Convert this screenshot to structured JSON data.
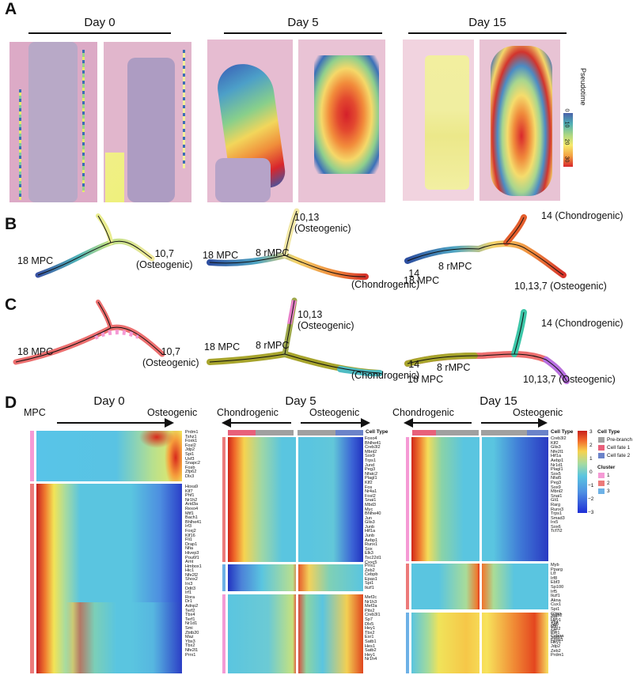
{
  "panels": {
    "A": {
      "letter": "A",
      "days": [
        "Day 0",
        "Day 5",
        "Day 15"
      ],
      "colorbar": {
        "title": "Pseudotime",
        "ticks": [
          "0",
          "10",
          "20",
          "30"
        ]
      }
    },
    "B": {
      "letter": "B",
      "day0": {
        "left": "18 MPC",
        "right": "10,7\n(Osteogenic)"
      },
      "day5": {
        "left": "18 MPC",
        "mid": "8 rMPC",
        "top": "10,13\n(Osteogenic)",
        "right": "14\n(Chondrogenic)"
      },
      "day15": {
        "top": "14 (Chondrogenic)",
        "mid": "8 rMPC",
        "left": "18 MPC",
        "right": "10,13,7 (Osteogenic)"
      }
    },
    "C": {
      "letter": "C",
      "day0": {
        "left": "18 MPC",
        "right": "10,7\n(Osteogenic)"
      },
      "day5": {
        "left": "18 MPC",
        "mid": "8 rMPC",
        "top": "10,13\n(Osteogenic)",
        "right": "14\n(Chondrogenic)"
      },
      "day15": {
        "top": "14 (Chondrogenic)",
        "mid": "8 rMPC",
        "left": "18 MPC",
        "right": "10,13,7 (Osteogenic)"
      }
    },
    "D": {
      "letter": "D",
      "day0": {
        "title": "Day 0",
        "left_label": "MPC",
        "right_label": "Osteogenic",
        "genes_a": "Prdm1\nTshz1\nFoxk1\nFosl2\nJdp2\nSpi1\nUsf3\nSnapc2\nFosb\nZfp62\nDlx3",
        "genes_b": "Hoxa9\nKlf7\nPhf1\nNr1h2\nArid3a\nRexo4\nMtf1\nBach1\nBhlhe41\nIrf3\nFoxj2\nKlf16\nFli1\nDrap1\nNfia\nHivep3\nPou6f1\nArnt\nHmbox1\nHic1\nNfe2l2\nShox2\nIrx3\nDdit3\nIrf1\nRora\nDr1\nAdnp2\nTerf2\nTbx4\nTerf1\nNr1d1\nSmi\nZbtb20\nMaz\nYbx3\nTbx2\nNfe2l1\nPrrx1"
      },
      "day5": {
        "title": "Day 5",
        "left_label": "Chondrogenic",
        "right_label": "Osteogenic",
        "cell_type": "Cell Type",
        "genes_a": "Foxo4\nBhlhe41\nCreb3l2\nMbnl2\nSox9\nTrps1\nJund\nPeg3\nNfatc2\nPlagl1\nKlf2\nFos\nNr4a1\nFosl2\nSnai1\nMbd3\nMyc\nBhlhe40\nJun\nGlis3\nJunb\nHif1a\nJunb\nAebp1\nRunx1\nSox\nElk3\nTsc22d1\nCxxc5",
        "genes_b": "Prrx1\nZeb2\nCebpb\nEpas1\nSpi1\nIkzf1",
        "genes_c": "Mef2c\nNr1h3\nMef2a\nPitx2\nCreb3l1\nSp7\nDlx5\nHey1\nTbx2\nEsr1\nSatb1\nHes1\nSatb2\nHey1\nNr1h4"
      },
      "day15": {
        "title": "Day 15",
        "left_label": "Chondrogenic",
        "right_label": "Osteogenic",
        "cell_type": "Cell Type",
        "genes_a": "Creb3l2\nKlf2\nGlis3\nNfe2l1\nHif1a\nAebp1\nNr1d1\nPlagl1\nSox5\nNfat5\nPeg3\nSox9\nMbnl2\nSnai1\nGli1\nRarg\nRunx3\nTrps1\nSmad3\nIrx5\nSox6\nTcf7l2",
        "genes_b": "Myb\nPparg\nLtf\nIrf8\nEbf3\nSp100\nIrf5\nIkzf1\nAkna\nCux1\nSpi1\nGlmp\nFli1\nYbx\nMlb\nIrf1\nCebpa\nEpas1",
        "genes_c": "Satb2\nHey1\nSp6\nTbx2\nEsr1\nSatb1\nHey1\nJdp2\nZeb2\nPrdm1"
      },
      "legend": {
        "scale_ticks": [
          "3",
          "2",
          "1",
          "0",
          "−1",
          "−2",
          "−3"
        ],
        "cell_type_title": "Cell Type",
        "cell_types": [
          "Pre-branch",
          "Cell fate 1",
          "Cell fate 2"
        ],
        "cluster_title": "Cluster",
        "clusters": [
          "1",
          "2",
          "3"
        ]
      }
    }
  },
  "colors": {
    "prebranch": "#a0a0a0",
    "fate1": "#e8607a",
    "fate2": "#6b83c9",
    "cluster1": "#f59ad5",
    "cluster2": "#ec7a7a",
    "cluster3": "#6db1e6",
    "tissue": "#d9a7c0"
  }
}
